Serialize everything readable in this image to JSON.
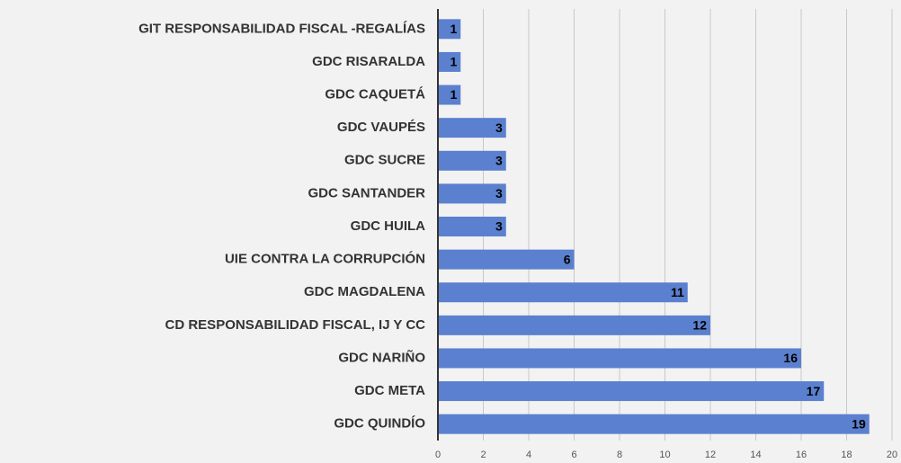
{
  "chart_data": {
    "type": "bar",
    "orientation": "horizontal",
    "categories": [
      "GIT RESPONSABILIDAD FISCAL -REGALÍAS",
      "GDC RISARALDA",
      "GDC CAQUETÁ",
      "GDC VAUPÉS",
      "GDC SUCRE",
      "GDC SANTANDER",
      "GDC HUILA",
      "UIE CONTRA LA CORRUPCIÓN",
      "GDC MAGDALENA",
      "CD RESPONSABILIDAD FISCAL, IJ Y CC",
      "GDC NARIÑO",
      "GDC META",
      "GDC QUINDÍO"
    ],
    "values": [
      1,
      1,
      1,
      3,
      3,
      3,
      3,
      6,
      11,
      12,
      16,
      17,
      19
    ],
    "color": "#5b80cf",
    "xlim": [
      0,
      20
    ],
    "xticks": [
      0,
      2,
      4,
      6,
      8,
      10,
      12,
      14,
      16,
      18,
      20
    ],
    "grid": true
  }
}
